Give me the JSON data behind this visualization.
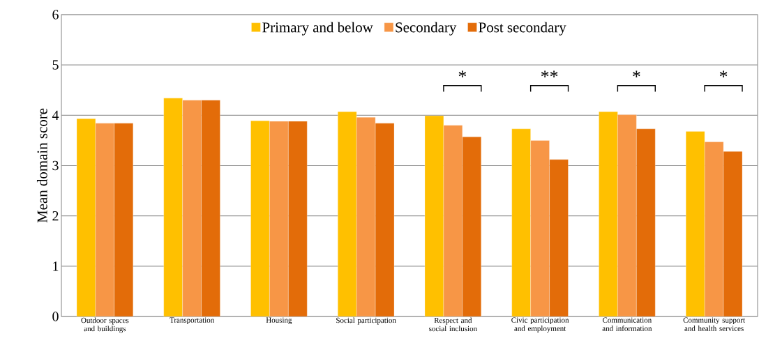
{
  "chart_data": {
    "type": "bar",
    "ylabel": "Mean domain score",
    "categories": [
      "Outdoor spaces and buildings",
      "Transportation",
      "Housing",
      "Social participation",
      "Respect and social inclusion",
      "Civic participation and employment",
      "Communication and information",
      "Community support and health services"
    ],
    "series": [
      {
        "name": "Primary and below",
        "color": "#ffc000",
        "values": [
          3.93,
          4.34,
          3.89,
          4.07,
          3.99,
          3.73,
          4.07,
          3.68
        ]
      },
      {
        "name": "Secondary",
        "color": "#f79646",
        "values": [
          3.84,
          4.3,
          3.88,
          3.96,
          3.8,
          3.5,
          4.01,
          3.47
        ]
      },
      {
        "name": "Post secondary",
        "color": "#e36c09",
        "values": [
          3.84,
          4.3,
          3.88,
          3.84,
          3.57,
          3.12,
          3.73,
          3.28
        ]
      }
    ],
    "ylim": [
      0,
      6
    ],
    "yticks": [
      0,
      1,
      2,
      3,
      4,
      5,
      6
    ],
    "grid": "y",
    "legend": "top",
    "annotations": [
      "*",
      "**",
      "*",
      "*"
    ]
  }
}
